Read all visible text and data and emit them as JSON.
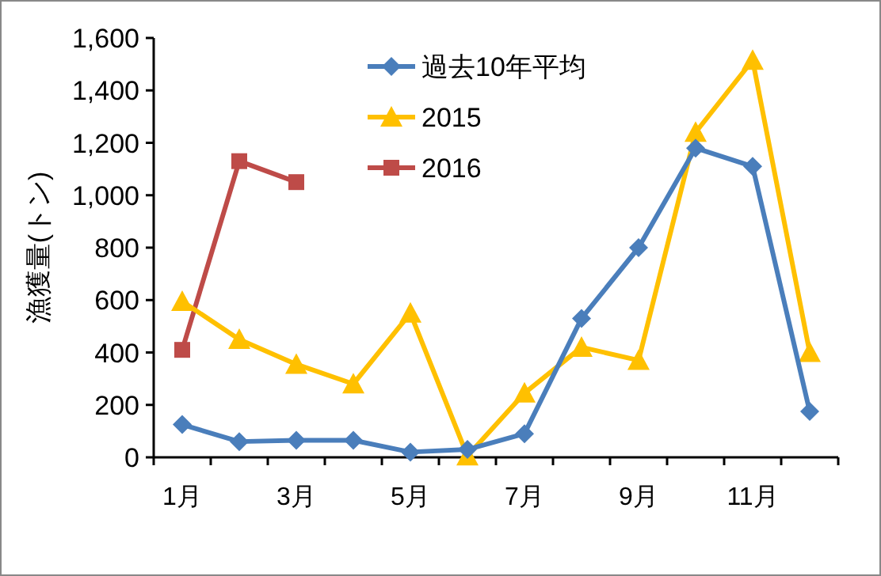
{
  "chart_data": {
    "type": "line",
    "ylabel": "漁獲量(トン)",
    "categories": [
      "1月",
      null,
      "3月",
      null,
      "5月",
      null,
      "7月",
      null,
      "9月",
      null,
      "11月",
      null
    ],
    "series": [
      {
        "name": "過去10年平均",
        "color": "#4a7ebb",
        "marker": "diamond",
        "values": [
          125,
          60,
          65,
          65,
          20,
          30,
          90,
          530,
          800,
          1180,
          1110,
          175
        ]
      },
      {
        "name": "2015",
        "color": "#ffc000",
        "marker": "triangle",
        "values": [
          595,
          450,
          355,
          280,
          550,
          5,
          245,
          420,
          370,
          1240,
          1515,
          400
        ]
      },
      {
        "name": "2016",
        "color": "#be4b48",
        "marker": "square",
        "values": [
          410,
          1130,
          1050,
          null,
          null,
          null,
          null,
          null,
          null,
          null,
          null,
          null
        ]
      }
    ],
    "ylim": [
      0,
      1600
    ],
    "yticks": [
      {
        "value": 0,
        "label": "0"
      },
      {
        "value": 200,
        "label": "200"
      },
      {
        "value": 400,
        "label": "400"
      },
      {
        "value": 600,
        "label": "600"
      },
      {
        "value": 800,
        "label": "800"
      },
      {
        "value": 1000,
        "label": "1,000"
      },
      {
        "value": 1200,
        "label": "1,200"
      },
      {
        "value": 1400,
        "label": "1,400"
      },
      {
        "value": 1600,
        "label": "1,600"
      }
    ],
    "grid": false,
    "legend": "top"
  }
}
